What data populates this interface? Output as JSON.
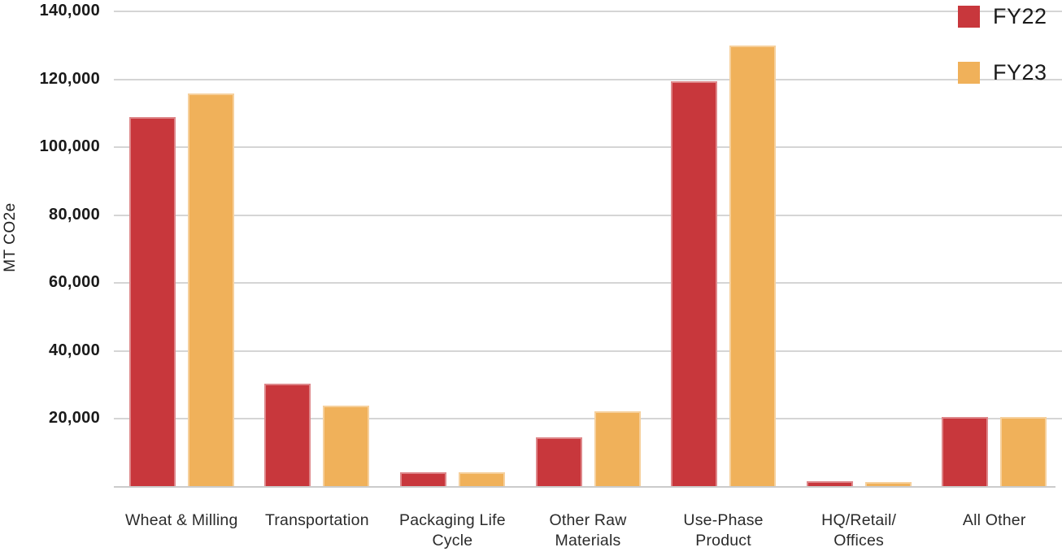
{
  "chart_data": {
    "type": "bar",
    "title": "",
    "xlabel": "",
    "ylabel": "MT CO2e",
    "categories": [
      "Wheat & Milling",
      "Transportation",
      "Packaging Life\nCycle",
      "Other Raw\nMaterials",
      "Use-Phase\nProduct",
      "HQ/Retail/\nOffices",
      "All Other"
    ],
    "series": [
      {
        "name": "FY22",
        "color": "#C8373C",
        "values": [
          109000,
          30300,
          4300,
          14600,
          119400,
          1700,
          20500
        ]
      },
      {
        "name": "FY23",
        "color": "#F0B15A",
        "values": [
          115800,
          23900,
          4300,
          22200,
          130000,
          1500,
          20500
        ]
      }
    ],
    "ylim": [
      0,
      140000
    ],
    "ytick_step": 20000,
    "ytick_labels": [
      "140,000",
      "120,000",
      "100,000",
      "80,000",
      "60,000",
      "40,000",
      "20,000"
    ],
    "grid": true,
    "legend_position": "top-right",
    "colors": {
      "gridline": "#D5D5D5",
      "axis_line": "#CBCBCB",
      "tick_text": "#1A1A1A",
      "category_text": "#2B2B2B",
      "legend_text": "#1A1A1A"
    }
  }
}
